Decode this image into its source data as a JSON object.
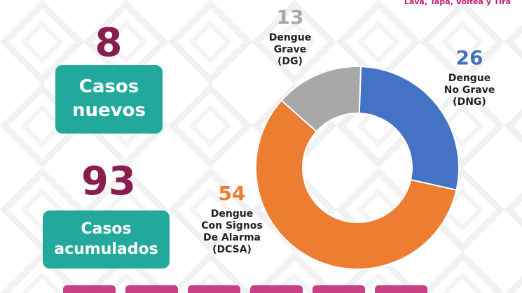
{
  "header": {
    "tagline": "Lava, Tapa, Voltea y Tira"
  },
  "summary": {
    "new_cases": {
      "value": "8",
      "label_line1": "Casos",
      "label_line2": "nuevos"
    },
    "total_cases": {
      "value": "93",
      "label_line1": "Casos",
      "label_line2": "acumulados"
    }
  },
  "colors": {
    "number": "#8a1d4f",
    "box": "#22a99c",
    "tagline": "#c01f6e",
    "dg": "#a8a8a8",
    "dng": "#4472c4",
    "dcsa": "#ed7d31"
  },
  "chart_data": {
    "type": "pie",
    "donut": true,
    "legend": "none",
    "slices": [
      {
        "value": 26,
        "value_label": "26",
        "label_lines": [
          "Dengue",
          "No Grave",
          "(DNG)"
        ],
        "color": "#4472c4"
      },
      {
        "value": 54,
        "value_label": "54",
        "label_lines": [
          "Dengue",
          "Con Signos",
          "De Alarma",
          "(DCSA)"
        ],
        "color": "#ed7d31"
      },
      {
        "value": 13,
        "value_label": "13",
        "label_lines": [
          "Dengue",
          "Grave",
          "(DG)"
        ],
        "color": "#a8a8a8"
      }
    ]
  }
}
